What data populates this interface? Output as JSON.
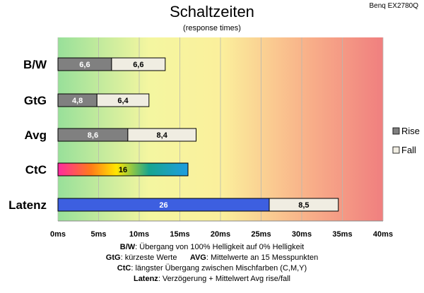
{
  "header": {
    "title": "Schaltzeiten",
    "subtitle": "(response times)",
    "model": "Benq EX2780Q"
  },
  "colors": {
    "rise": "#808080",
    "fall": "#f0ede2",
    "latenz_rise": "#3d5fe0",
    "bg_gradient": [
      "#9fe39f",
      "#fafa9c",
      "#f08080"
    ]
  },
  "chart_data": {
    "type": "bar",
    "orientation": "horizontal",
    "stacked": true,
    "categories": [
      "B/W",
      "GtG",
      "Avg",
      "CtC",
      "Latenz"
    ],
    "series": [
      {
        "name": "Rise",
        "values": [
          6.6,
          4.8,
          8.6,
          16,
          26
        ]
      },
      {
        "name": "Fall",
        "values": [
          6.6,
          6.4,
          8.4,
          null,
          8.5
        ]
      }
    ],
    "value_labels": [
      [
        "6,6",
        "6,6"
      ],
      [
        "4,8",
        "6,4"
      ],
      [
        "8,6",
        "8,4"
      ],
      [
        "16",
        ""
      ],
      [
        "26",
        "8,5"
      ]
    ],
    "xlim": [
      0,
      40
    ],
    "xticks": [
      0,
      5,
      10,
      15,
      20,
      25,
      30,
      35,
      40
    ],
    "xtick_labels": [
      "0ms",
      "5ms",
      "10ms",
      "15ms",
      "20ms",
      "25ms",
      "30ms",
      "35ms",
      "40ms"
    ],
    "grid": true,
    "legend_position": "right",
    "legend": [
      "Rise",
      "Fall"
    ]
  },
  "notes": {
    "bw_key": "B/W",
    "bw_text": ":  Übergang von 100% Helligkeit auf 0% Helligkeit",
    "gtg_key": "GtG",
    "gtg_text": ": kürzeste  Werte",
    "avg_key": "AVG",
    "avg_text": ": Mittelwerte  an 15 Messpunkten",
    "ctc_key": "CtC",
    "ctc_text": ": längster Übergang  zwischen Mischfarben  (C,M,Y)",
    "latenz_key": "Latenz",
    "latenz_text": ": Verzögerung  + Mittelwert  Avg rise/fall"
  }
}
